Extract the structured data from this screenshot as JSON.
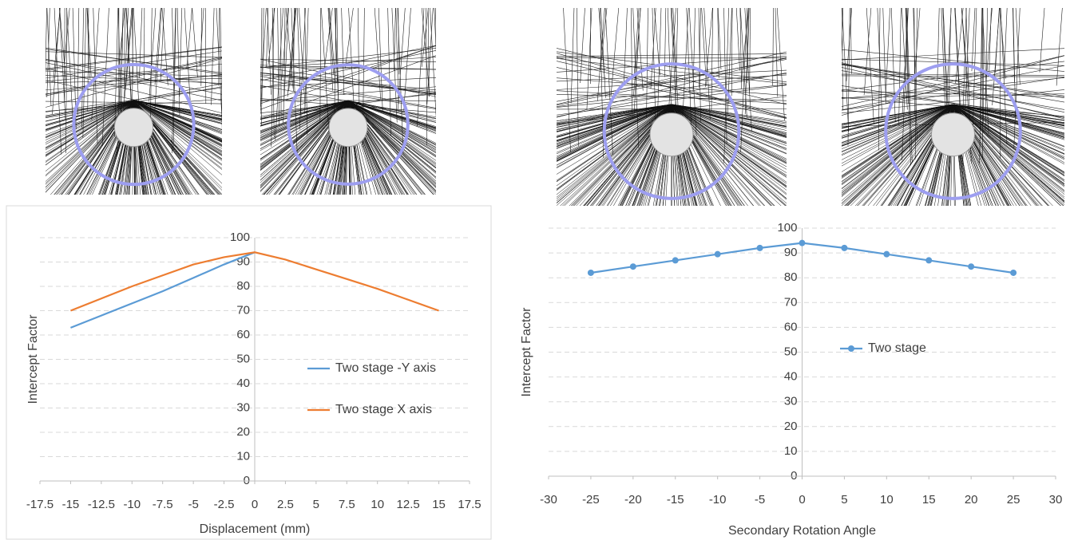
{
  "chart_data": [
    {
      "type": "line",
      "x_label": "Displacement (mm)",
      "y_label": "Intercept Factor",
      "x": [
        -15,
        -12.5,
        -10,
        -7.5,
        -5,
        -2.5,
        0,
        2.5,
        5,
        7.5,
        10,
        12.5,
        15
      ],
      "series": [
        {
          "name": "Two stage -Y axis",
          "color": "#5b9bd5",
          "values": [
            63,
            68,
            73,
            78,
            83.5,
            89,
            94,
            null,
            null,
            null,
            null,
            null,
            null
          ]
        },
        {
          "name": "Two stage X axis",
          "color": "#ed7d31",
          "values": [
            70,
            75,
            80,
            84.5,
            89,
            92,
            94,
            91,
            87,
            83,
            79,
            74.5,
            70
          ]
        }
      ],
      "xlim": [
        -17.5,
        17.5
      ],
      "xticks": [
        -17.5,
        -15,
        -12.5,
        -10,
        -7.5,
        -5,
        -2.5,
        0,
        2.5,
        5,
        7.5,
        10,
        12.5,
        15,
        17.5
      ],
      "ylim": [
        0,
        100
      ],
      "yticks": [
        0,
        10,
        20,
        30,
        40,
        50,
        60,
        70,
        80,
        90,
        100
      ],
      "grid": true,
      "markers": false,
      "legend": "right"
    },
    {
      "type": "line",
      "x_label": "Secondary Rotation Angle",
      "y_label": "Intercept Factor",
      "x": [
        -25,
        -20,
        -15,
        -10,
        -5,
        0,
        5,
        10,
        15,
        20,
        25
      ],
      "series": [
        {
          "name": "Two stage",
          "color": "#5b9bd5",
          "values": [
            82,
            84.5,
            87,
            89.5,
            92,
            94,
            92,
            89.5,
            87,
            84.5,
            82
          ]
        }
      ],
      "xlim": [
        -30,
        30
      ],
      "xticks": [
        -30,
        -25,
        -20,
        -15,
        -10,
        -5,
        0,
        5,
        10,
        15,
        20,
        25,
        30
      ],
      "ylim": [
        0,
        100
      ],
      "yticks": [
        0,
        10,
        20,
        30,
        40,
        50,
        60,
        70,
        80,
        90,
        100
      ],
      "grid": true,
      "markers": true,
      "legend": "center"
    }
  ]
}
